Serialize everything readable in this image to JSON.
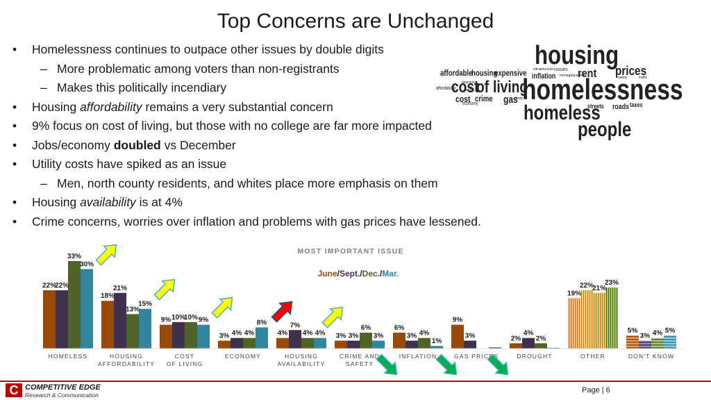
{
  "slide": {
    "title": "Top Concerns are Unchanged",
    "page_label": "Page | 6"
  },
  "bullets": [
    {
      "level": 1,
      "marker": "•",
      "parts": [
        {
          "t": "Homelessness continues to outpace other issues by double digits",
          "s": ""
        }
      ]
    },
    {
      "level": 2,
      "marker": "–",
      "parts": [
        {
          "t": "More problematic among voters than non-registrants",
          "s": ""
        }
      ]
    },
    {
      "level": 2,
      "marker": "–",
      "parts": [
        {
          "t": "Makes this politically incendiary",
          "s": ""
        }
      ]
    },
    {
      "level": 1,
      "marker": "•",
      "parts": [
        {
          "t": "Housing ",
          "s": ""
        },
        {
          "t": "affordability",
          "s": "i"
        },
        {
          "t": " remains a very substantial concern",
          "s": ""
        }
      ]
    },
    {
      "level": 1,
      "marker": "•",
      "parts": [
        {
          "t": "9% focus on cost of living, but those with no college are far more impacted",
          "s": ""
        }
      ]
    },
    {
      "level": 1,
      "marker": "•",
      "parts": [
        {
          "t": "Jobs/economy ",
          "s": ""
        },
        {
          "t": "doubled",
          "s": "b"
        },
        {
          "t": " vs December",
          "s": ""
        }
      ]
    },
    {
      "level": 1,
      "marker": "•",
      "parts": [
        {
          "t": "Utility costs have spiked as an issue",
          "s": ""
        }
      ]
    },
    {
      "level": 2,
      "marker": "–",
      "parts": [
        {
          "t": "Men, north county residents, and whites place more emphasis on them",
          "s": ""
        }
      ]
    },
    {
      "level": 1,
      "marker": "•",
      "parts": [
        {
          "t": "Housing ",
          "s": ""
        },
        {
          "t": "availability",
          "s": "i"
        },
        {
          "t": " is at 4%",
          "s": ""
        }
      ]
    },
    {
      "level": 1,
      "marker": "•",
      "parts": [
        {
          "t": "Crime concerns, worries over inflation and problems with gas prices have lessened.",
          "s": ""
        }
      ]
    }
  ],
  "word_cloud": {
    "housing": "housing",
    "prices": "prices",
    "affordable": "affordable",
    "housing2": "housing",
    "expensive": "expensive",
    "rent": "rent",
    "inflation": "inflation",
    "cost1": "cost",
    "of": "of",
    "living": "living",
    "homelessness": "homelessness",
    "affordability": "affordability",
    "cost2": "cost",
    "crime": "crime",
    "gas": "gas",
    "economy": "economy",
    "streets": "streets",
    "roads": "roads",
    "taxes": "taxes",
    "homeless": "homeless",
    "people": "people",
    "downtown": "downtown",
    "electric": "electric",
    "infrastructure": "infrastructure",
    "issues": "issues",
    "money": "money",
    "population": "population",
    "safety": "safety",
    "help": "help",
    "traffic": "traffic"
  },
  "chart_data": {
    "type": "bar",
    "title": "MOST IMPORTANT ISSUE",
    "legend": {
      "parts": [
        {
          "text": "June",
          "color": "#984807"
        },
        {
          "text": "/",
          "color": "#1a1a1a"
        },
        {
          "text": "Sept.",
          "color": "#403151"
        },
        {
          "text": "/",
          "color": "#1a1a1a"
        },
        {
          "text": "Dec.",
          "color": "#4f6228"
        },
        {
          "text": "/",
          "color": "#1a1a1a"
        },
        {
          "text": "Mar.",
          "color": "#31859c"
        }
      ],
      "position": "top-center"
    },
    "categories": [
      [
        "HOMELESS"
      ],
      [
        "HOUSING",
        "AFFORDABILITY"
      ],
      [
        "COST",
        "OF LIVING"
      ],
      [
        "ECONOMY"
      ],
      [
        "HOUSING",
        "AVAILABILITY"
      ],
      [
        "CRIME AND",
        "SAFETY"
      ],
      [
        "INFLATION"
      ],
      [
        "GAS PRICES"
      ],
      [
        "DROUGHT"
      ],
      [
        "OTHER"
      ],
      [
        "DON'T KNOW"
      ]
    ],
    "series": [
      {
        "name": "June",
        "color": "#984807",
        "values": [
          22,
          18,
          9,
          3,
          4,
          3,
          6,
          9,
          2,
          19,
          5
        ],
        "labels": [
          "22%",
          "18%",
          "9%",
          "3%",
          "4%",
          "3%",
          "6%",
          "9%",
          "2%",
          "19%",
          "5%"
        ]
      },
      {
        "name": "Sept.",
        "color": "#403151",
        "values": [
          22,
          21,
          10,
          4,
          7,
          3,
          3,
          3,
          4,
          22,
          3
        ],
        "labels": [
          "22%",
          "21%",
          "10%",
          "4%",
          "7%",
          "3%",
          "3%",
          "3%",
          "4%",
          "22%",
          "3%"
        ]
      },
      {
        "name": "Dec.",
        "color": "#4f6228",
        "values": [
          33,
          13,
          10,
          4,
          4,
          6,
          4,
          0,
          2,
          21,
          4
        ],
        "labels": [
          "33%",
          "13%",
          "10%",
          "4%",
          "4%",
          "6%",
          "4%",
          "",
          "2%",
          "21%",
          "4%"
        ]
      },
      {
        "name": "Mar.",
        "color": "#31859c",
        "values": [
          30,
          15,
          9,
          8,
          4,
          3,
          1,
          0.5,
          0.3,
          23,
          5
        ],
        "labels": [
          "30%",
          "15%",
          "9%",
          "8%",
          "4%",
          "3%",
          "1%",
          "",
          "",
          "23%",
          "5%"
        ]
      }
    ],
    "striped_categories": [
      "OTHER",
      "DON'T KNOW"
    ],
    "ylim": [
      0,
      35
    ],
    "grid": false,
    "annotations": [
      {
        "type": "arrow",
        "color": "yellow",
        "points_to": "HOMELESS"
      },
      {
        "type": "arrow",
        "color": "yellow",
        "points_to": "HOUSING AFFORDABILITY"
      },
      {
        "type": "arrow",
        "color": "yellow",
        "points_to": "COST OF LIVING"
      },
      {
        "type": "arrow",
        "color": "red",
        "points_to": "ECONOMY"
      },
      {
        "type": "arrow",
        "color": "yellow",
        "points_to": "HOUSING AVAILABILITY"
      },
      {
        "type": "arrow",
        "color": "green",
        "points_to": "CRIME AND SAFETY"
      },
      {
        "type": "arrow",
        "color": "green",
        "points_to": "INFLATION"
      },
      {
        "type": "arrow",
        "color": "green",
        "points_to": "GAS PRICES"
      }
    ]
  },
  "footer": {
    "logo_mark": "C",
    "logo_name": "COMPETITIVE EDGE",
    "logo_sub": "Research & Communication"
  },
  "colors": {
    "accent": "#c00000",
    "arrow_yellow": "#ffff00",
    "arrow_yellow_stroke": "#4bacc6",
    "arrow_red": "#ff0000",
    "arrow_red_stroke": "#1f4e79",
    "arrow_green": "#00b050",
    "arrow_green_stroke": "#4bacc6"
  }
}
